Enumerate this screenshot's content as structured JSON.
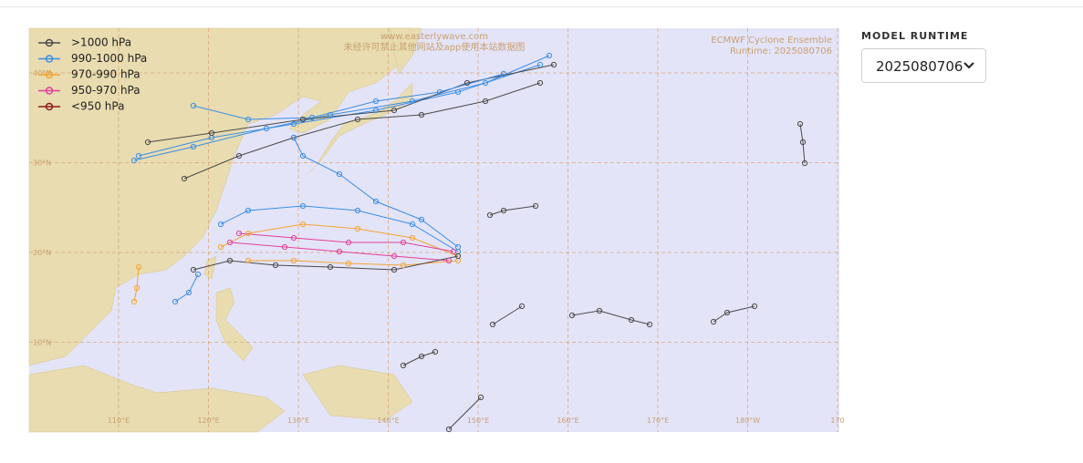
{
  "map": {
    "overlay_title": "ECMWF Cyclone Ensemble",
    "overlay_runtime": "Runtime: 2025080706",
    "watermark": [
      "www.easterlywave.com",
      "未经许可禁止其他网站及app使用本站数据图"
    ],
    "legend": [
      {
        "label": ">1000 hPa",
        "color": "#4a4a4a"
      },
      {
        "label": "990-1000 hPa",
        "color": "#3a8ee6"
      },
      {
        "label": "970-990 hPa",
        "color": "#f2a533"
      },
      {
        "label": "950-970 hPa",
        "color": "#e2409b"
      },
      {
        "label": "<950 hPa",
        "color": "#8c1c1c"
      }
    ],
    "latitude_labels": [
      "40°N",
      "30°N",
      "20°N",
      "10°N"
    ],
    "longitude_labels": [
      "110°E",
      "120°E",
      "130°E",
      "140°E",
      "150°E",
      "160°E",
      "170°E",
      "180°W",
      "170"
    ]
  },
  "sidebar": {
    "label": "MODEL RUNTIME",
    "selected": "2025080706"
  }
}
